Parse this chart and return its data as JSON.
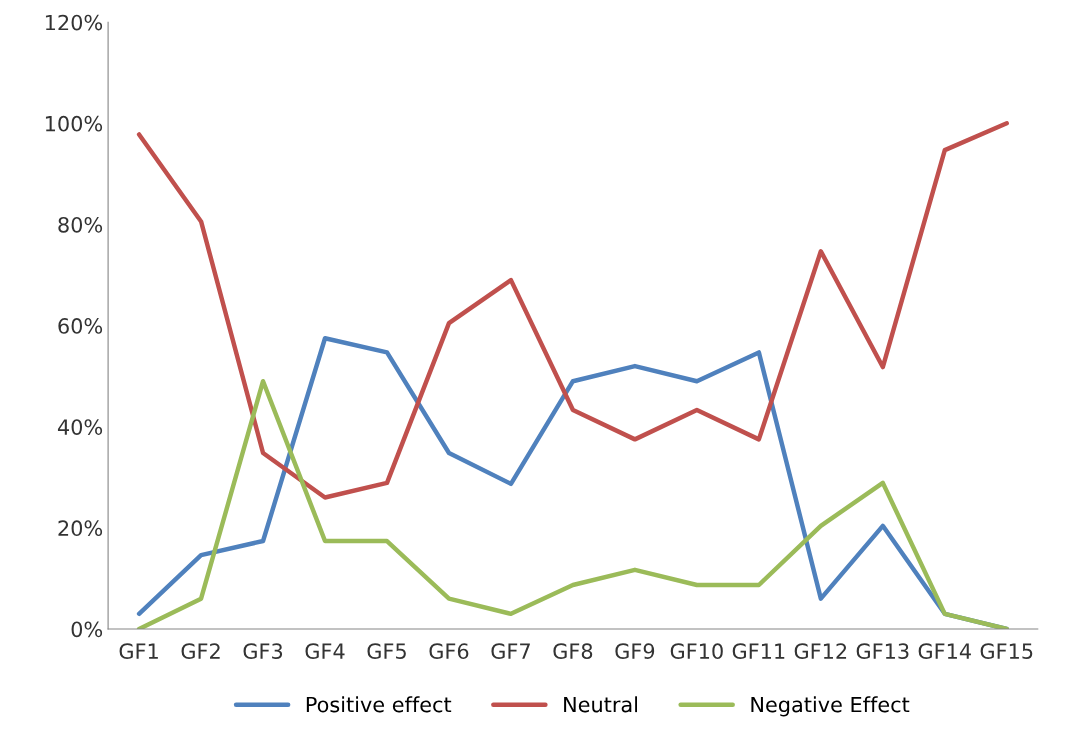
{
  "chart_data": {
    "type": "line",
    "categories": [
      "GF1",
      "GF2",
      "GF3",
      "GF4",
      "GF5",
      "GF6",
      "GF7",
      "GF8",
      "GF9",
      "GF10",
      "GF11",
      "GF12",
      "GF13",
      "GF14",
      "GF15"
    ],
    "series": [
      {
        "name": "Positive effect",
        "color": "#4f81bd",
        "values": [
          3,
          14.6,
          17.4,
          57.5,
          54.7,
          34.8,
          28.7,
          49,
          52,
          49,
          54.7,
          6,
          20.4,
          3,
          0
        ]
      },
      {
        "name": "Neutral",
        "color": "#c0504d",
        "values": [
          97.8,
          80.6,
          34.8,
          26,
          28.9,
          60.5,
          69,
          43.3,
          37.5,
          43.3,
          37.5,
          74.7,
          51.8,
          94.7,
          100
        ]
      },
      {
        "name": "Negative Effect",
        "color": "#9bbb59",
        "values": [
          0,
          6,
          49,
          17.4,
          17.4,
          6,
          3,
          8.7,
          11.7,
          8.7,
          8.7,
          20.4,
          28.9,
          3,
          0
        ]
      }
    ],
    "ylim": [
      0,
      120
    ],
    "yticks": [
      {
        "value": 0,
        "label": "0%"
      },
      {
        "value": 20,
        "label": "20%"
      },
      {
        "value": 40,
        "label": "40%"
      },
      {
        "value": 60,
        "label": "60%"
      },
      {
        "value": 80,
        "label": "80%"
      },
      {
        "value": 100,
        "label": "100%"
      },
      {
        "value": 120,
        "label": "120%"
      }
    ],
    "grid": false,
    "legend": "bottom",
    "marker": "none",
    "line_style": "solid"
  }
}
